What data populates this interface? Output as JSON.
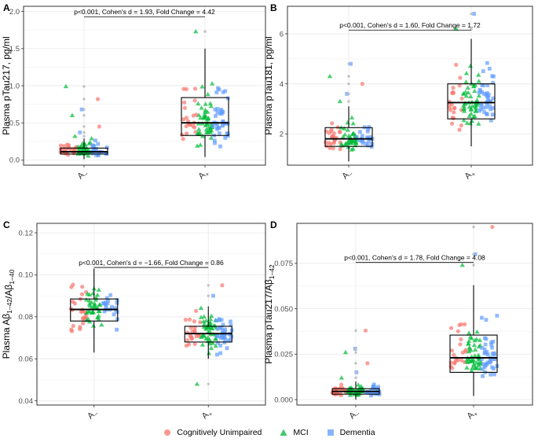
{
  "colors": {
    "cognitively_unimpaired": "#F8766D",
    "mci": "#00BA38",
    "dementia": "#619CFF",
    "grid": "#ebebeb",
    "panel_border": "#333333",
    "outlier": "#bdbdbd"
  },
  "legend": {
    "position": "bottom",
    "items": [
      {
        "label": "Cognitively Unimpaired",
        "shape": "circle",
        "color": "#F8766D"
      },
      {
        "label": "MCI",
        "shape": "triangle",
        "color": "#00BA38"
      },
      {
        "label": "Dementia",
        "shape": "square",
        "color": "#619CFF"
      }
    ]
  },
  "chart_data": [
    {
      "panel": "A",
      "type": "box",
      "ylabel": "Plasma pTau217, pg/ml",
      "categories": [
        "A−",
        "A+"
      ],
      "ylim": [
        -0.07,
        2.07
      ],
      "yticks": [
        0.0,
        0.5,
        1.0,
        1.5,
        2.0
      ],
      "ytick_labels": [
        "0.0",
        "0.5",
        "1.0",
        "1.5",
        "2.0"
      ],
      "boxes": [
        {
          "category": "A−",
          "q1": 0.08,
          "median": 0.11,
          "q3": 0.16,
          "whisker_low": 0.01,
          "whisker_high": 0.29,
          "outliers": [
            0.32,
            0.37,
            0.45,
            0.6,
            0.68,
            0.82,
            0.99
          ]
        },
        {
          "category": "A+",
          "q1": 0.33,
          "median": 0.5,
          "q3": 0.84,
          "whisker_low": 0.04,
          "whisker_high": 1.5,
          "outliers": [
            1.73
          ]
        }
      ],
      "spread": [
        [
          0.0,
          0.4
        ],
        [
          0.05,
          1.45
        ]
      ],
      "annotation": "p<0.001, Cohen's d = 1.93, Fold Change = 4.42",
      "annotation_y": 1.93
    },
    {
      "panel": "B",
      "type": "box",
      "ylabel": "Plasma pTau181, pg/ml",
      "categories": [
        "A−",
        "A+"
      ],
      "ylim": [
        0.75,
        7.1
      ],
      "yticks": [
        2,
        4,
        6
      ],
      "ytick_labels": [
        "2",
        "4",
        "6"
      ],
      "boxes": [
        {
          "category": "A−",
          "q1": 1.5,
          "median": 1.8,
          "q3": 2.25,
          "whisker_low": 0.9,
          "whisker_high": 3.1,
          "outliers": [
            3.3,
            3.6,
            4.0,
            4.3,
            4.8
          ]
        },
        {
          "category": "A+",
          "q1": 2.6,
          "median": 3.25,
          "q3": 4.0,
          "whisker_low": 1.5,
          "whisker_high": 5.8,
          "outliers": [
            6.2,
            6.8
          ]
        }
      ],
      "spread": [
        [
          1.0,
          3.0
        ],
        [
          1.6,
          5.8
        ]
      ],
      "annotation": "p<0.001, Cohen's d = 1.60, Fold Change = 1.72",
      "annotation_y": 6.15
    },
    {
      "panel": "C",
      "type": "box",
      "ylabel": "Plasma Aβ1–42/Aβ1–40",
      "categories": [
        "A−",
        "A+"
      ],
      "ylim": [
        0.038,
        0.1245
      ],
      "yticks": [
        0.04,
        0.06,
        0.08,
        0.1,
        0.12
      ],
      "ytick_labels": [
        "0.04",
        "0.06",
        "0.08",
        "0.10",
        "0.12"
      ],
      "boxes": [
        {
          "category": "A−",
          "q1": 0.078,
          "median": 0.0835,
          "q3": 0.0885,
          "whisker_low": 0.063,
          "whisker_high": 0.103,
          "outliers": []
        },
        {
          "category": "A+",
          "q1": 0.068,
          "median": 0.072,
          "q3": 0.0755,
          "whisker_low": 0.06,
          "whisker_high": 0.085,
          "outliers": [
            0.048,
            0.09,
            0.095
          ]
        }
      ],
      "spread": [
        [
          0.065,
          0.102
        ],
        [
          0.056,
          0.088
        ]
      ],
      "annotation": "p<0.001, Cohen's d = −1.66, Fold Change = 0.86",
      "annotation_y": 0.1035
    },
    {
      "panel": "D",
      "type": "box",
      "ylabel": "Plasma pTau217/Aβ1–42",
      "categories": [
        "A−",
        "A+"
      ],
      "ylim": [
        -0.003,
        0.097
      ],
      "yticks": [
        0.0,
        0.025,
        0.05,
        0.075
      ],
      "ytick_labels": [
        "0.000",
        "0.025",
        "0.050",
        "0.075"
      ],
      "boxes": [
        {
          "category": "A−",
          "q1": 0.003,
          "median": 0.0045,
          "q3": 0.006,
          "whisker_low": 0.0,
          "whisker_high": 0.01,
          "outliers": [
            0.012,
            0.015,
            0.02,
            0.026,
            0.028,
            0.038
          ]
        },
        {
          "category": "A+",
          "q1": 0.015,
          "median": 0.023,
          "q3": 0.0355,
          "whisker_low": 0.002,
          "whisker_high": 0.063,
          "outliers": [
            0.074,
            0.08,
            0.095
          ]
        }
      ],
      "spread": [
        [
          0.0,
          0.011
        ],
        [
          0.004,
          0.06
        ]
      ],
      "annotation": "p<0.001, Cohen's d = 1.78, Fold Change = 4.08",
      "annotation_y": 0.0755
    }
  ]
}
